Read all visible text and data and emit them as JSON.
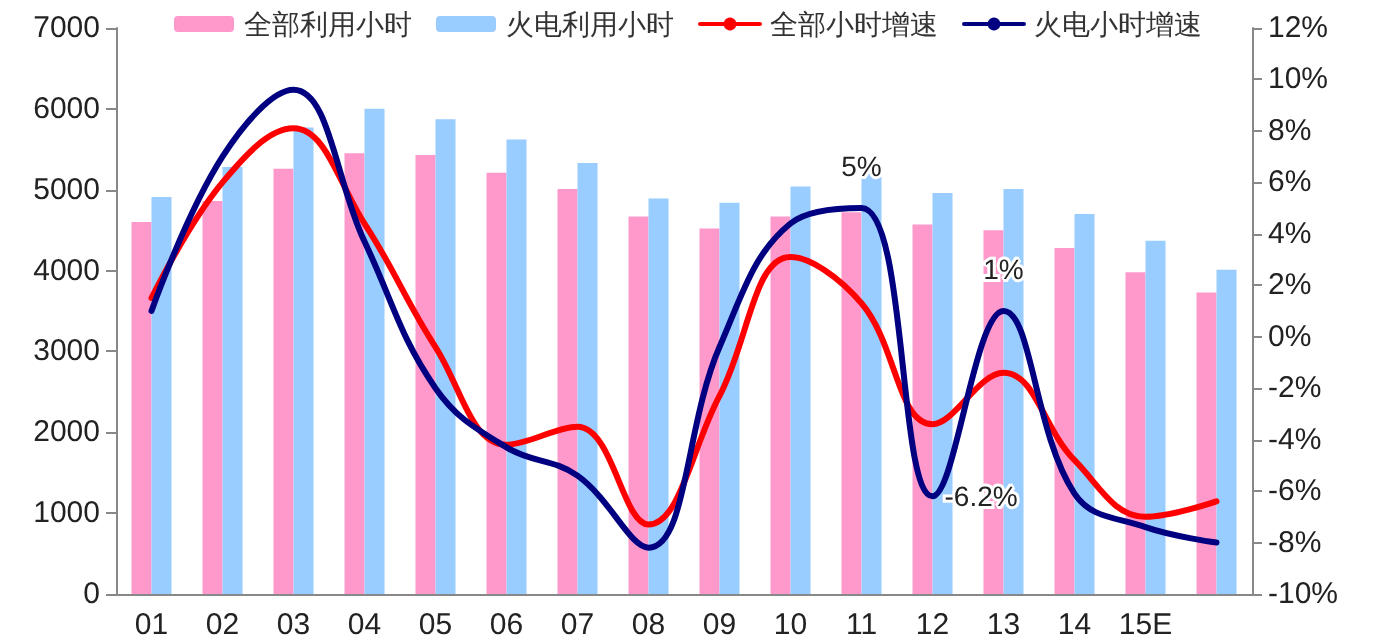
{
  "chart_data": {
    "type": "bar",
    "categories": [
      "01",
      "02",
      "03",
      "04",
      "05",
      "06",
      "07",
      "08",
      "09",
      "10",
      "11",
      "12",
      "13",
      "14",
      "15E",
      null
    ],
    "series": [
      {
        "name": "全部利用小时",
        "color": "#ff99cc",
        "values": [
          4600,
          4860,
          5260,
          5450,
          5430,
          5210,
          5010,
          4670,
          4520,
          4670,
          4720,
          4570,
          4500,
          4280,
          3980,
          3730
        ]
      },
      {
        "name": "火电利用小时",
        "color": "#99ccff",
        "values": [
          4910,
          5280,
          5770,
          6000,
          5870,
          5620,
          5330,
          4890,
          4840,
          5040,
          5260,
          4960,
          5010,
          4700,
          4370,
          4010
        ]
      },
      {
        "name": "全部小时增速",
        "type": "line",
        "axis": "y2",
        "color": "#ff0000",
        "values": [
          1.5,
          6.0,
          8.1,
          4.4,
          -0.4,
          -4.2,
          -3.5,
          -7.3,
          -2.3,
          3.1,
          1.3,
          -3.4,
          -1.4,
          -4.8,
          -7.0,
          -6.4
        ]
      },
      {
        "name": "火电小时增速",
        "type": "line",
        "axis": "y2",
        "color": "#000080",
        "values": [
          1.0,
          7.0,
          9.6,
          3.7,
          -2.0,
          -4.3,
          -5.4,
          -8.2,
          -0.4,
          4.4,
          5,
          -6.2,
          1,
          -6.1,
          -7.4,
          -8.0
        ],
        "value_labels": [
          null,
          null,
          null,
          null,
          null,
          null,
          null,
          null,
          null,
          null,
          "5%",
          "-6.2%",
          "1%",
          null,
          null,
          null
        ]
      }
    ],
    "ylim": [
      0,
      7000
    ],
    "yticks": [
      0,
      1000,
      2000,
      3000,
      4000,
      5000,
      6000,
      7000
    ],
    "y2lim": [
      -10,
      12
    ],
    "y2ticks": [
      {
        "value": -10,
        "label": "-10%"
      },
      {
        "value": -8,
        "label": "-8%"
      },
      {
        "value": -6,
        "label": "-6%"
      },
      {
        "value": -4,
        "label": "-4%"
      },
      {
        "value": -2,
        "label": "-2%"
      },
      {
        "value": 0,
        "label": "0%"
      },
      {
        "value": 2,
        "label": "2%"
      },
      {
        "value": 4,
        "label": "4%"
      },
      {
        "value": 6,
        "label": "6%"
      },
      {
        "value": 8,
        "label": "8%"
      },
      {
        "value": 10,
        "label": "10%"
      },
      {
        "value": 12,
        "label": "12%"
      }
    ],
    "grid": false,
    "legend": "top",
    "marker": "none"
  }
}
